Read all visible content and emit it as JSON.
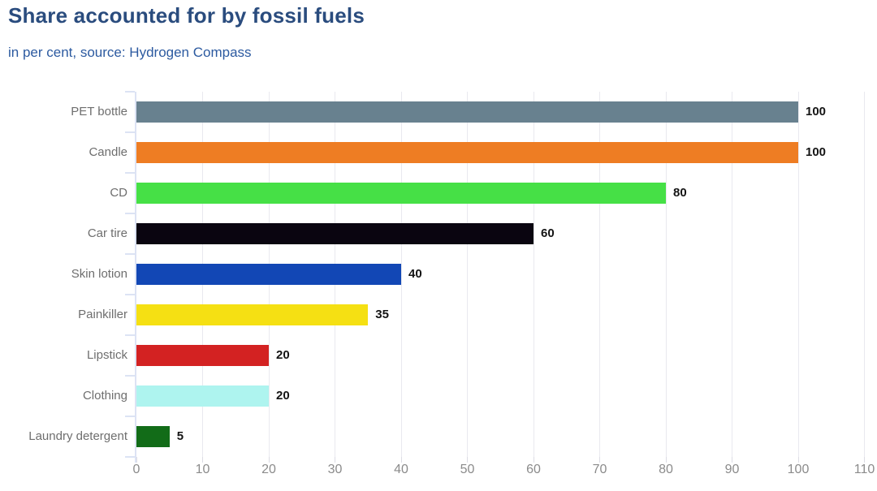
{
  "header": {
    "title": "Share accounted for by fossil fuels",
    "subtitle": "in per cent, source: Hydrogen Compass"
  },
  "chart_data": {
    "type": "bar",
    "orientation": "horizontal",
    "title": "Share accounted for by fossil fuels",
    "subtitle": "in per cent, source: Hydrogen Compass",
    "xlabel": "",
    "ylabel": "",
    "unit": "per cent",
    "source": "Hydrogen Compass",
    "categories": [
      "PET bottle",
      "Candle",
      "CD",
      "Car tire",
      "Skin lotion",
      "Painkiller",
      "Lipstick",
      "Clothing",
      "Laundry detergent"
    ],
    "values": [
      100,
      100,
      80,
      60,
      40,
      35,
      20,
      20,
      5
    ],
    "value_labels": [
      "100",
      "100",
      "80",
      "60",
      "40",
      "35",
      "20",
      "20",
      "5"
    ],
    "bar_colors": [
      "#68818F",
      "#EE7D23",
      "#46E046",
      "#0A0510",
      "#1247B5",
      "#F5E013",
      "#D32222",
      "#AEF4EF",
      "#126C18"
    ],
    "xlim": [
      0,
      110
    ],
    "x_ticks": [
      0,
      10,
      20,
      30,
      40,
      50,
      60,
      70,
      80,
      90,
      100,
      110
    ],
    "grid": "vertical",
    "legend": "none"
  },
  "style": {
    "title_color": "#2A4C7E",
    "subtitle_color": "#2C5AA0",
    "grid_color": "#E9E9EF",
    "axis_color": "#DCE3F4",
    "x_tick_color": "#DCDCE4",
    "x_tick_label_color": "#8B8B8B",
    "category_label_color": "#6E6E6E",
    "value_label_color": "#141414",
    "background": "#FFFFFF"
  }
}
